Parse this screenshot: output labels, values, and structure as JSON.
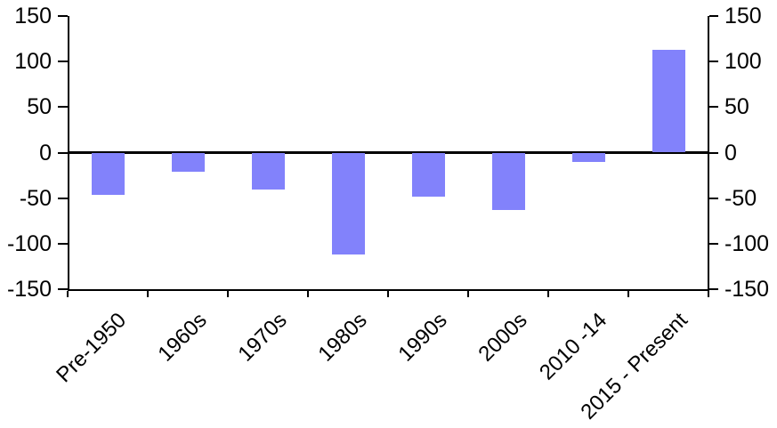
{
  "chart_data": {
    "type": "bar",
    "title": "",
    "xlabel": "",
    "ylabel": "",
    "categories": [
      "Pre-1950",
      "1960s",
      "1970s",
      "1980s",
      "1990s",
      "2000s",
      "2010 -14",
      "2015 - Present"
    ],
    "values": [
      -46,
      -21,
      -41,
      -112,
      -48,
      -63,
      -10,
      113
    ],
    "ylim": [
      -150,
      150
    ],
    "yticks": [
      150,
      100,
      50,
      0,
      -50,
      -100,
      -150
    ],
    "dual_y_axis": true,
    "grid": false,
    "legend": "none",
    "bar_color": "#8282fb",
    "axis_color": "#000000",
    "label_color": "#000000",
    "background_color": "#ffffff"
  }
}
